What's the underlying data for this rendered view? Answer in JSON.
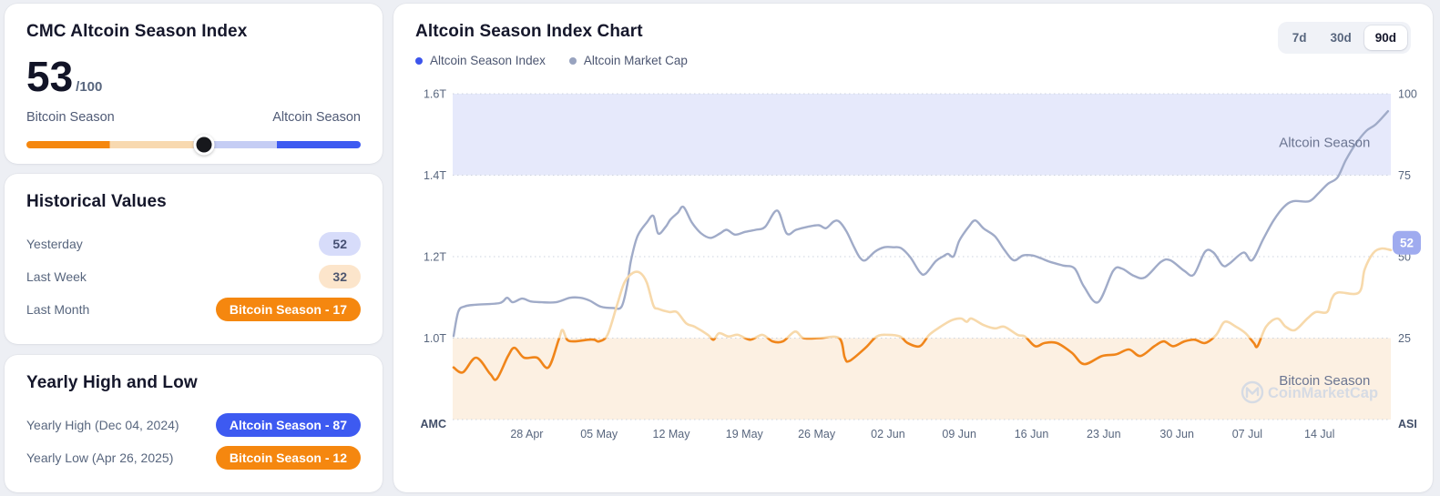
{
  "index_card": {
    "title": "CMC Altcoin Season Index",
    "value": "53",
    "max": "/100",
    "left_label": "Bitcoin Season",
    "right_label": "Altcoin Season",
    "knob_left": "53%",
    "slider_segments": [
      "#F5870F",
      "#F8D9B0",
      "#C5CDF4",
      "#3D5AF1"
    ]
  },
  "historical_card": {
    "title": "Historical Values",
    "rows": [
      {
        "label": "Yesterday",
        "value": "52",
        "pill_class": "pill-indigo"
      },
      {
        "label": "Last Week",
        "value": "32",
        "pill_class": "pill-peach"
      },
      {
        "label": "Last Month",
        "value": "Bitcoin Season - 17",
        "pill_class": "pill-orange"
      }
    ]
  },
  "yearly_card": {
    "title": "Yearly High and Low",
    "rows": [
      {
        "label": "Yearly High (Dec 04, 2024)",
        "value": "Altcoin Season - 87",
        "pill_class": "pill-blue"
      },
      {
        "label": "Yearly Low (Apr 26, 2025)",
        "value": "Bitcoin Season - 12",
        "pill_class": "pill-orange"
      }
    ]
  },
  "chart_card": {
    "title": "Altcoin Season Index Chart",
    "legend": [
      {
        "label": "Altcoin Season Index",
        "color": "#3c55ec"
      },
      {
        "label": "Altcoin Market Cap",
        "color": "#98a3bf"
      }
    ],
    "ranges": [
      {
        "label": "7d",
        "selected_class": ""
      },
      {
        "label": "30d",
        "selected_class": ""
      },
      {
        "label": "90d",
        "selected_class": "active"
      }
    ]
  },
  "chart_data": {
    "type": "line",
    "title": "Altcoin Season Index Chart",
    "left_axis": {
      "label": "AMC",
      "ticks": [
        {
          "label": "1.6T",
          "t": 1.6
        },
        {
          "label": "1.4T",
          "t": 1.4
        },
        {
          "label": "1.2T",
          "t": 1.2
        },
        {
          "label": "1.0T",
          "t": 1.0
        }
      ],
      "range_trillions": [
        0.8,
        1.6
      ]
    },
    "right_axis": {
      "label": "ASI",
      "ticks": [
        {
          "label": "100",
          "v": 100
        },
        {
          "label": "75",
          "v": 75
        },
        {
          "label": "50",
          "v": 50
        },
        {
          "label": "25",
          "v": 25
        }
      ],
      "range": [
        0,
        100
      ]
    },
    "x_ticks": [
      {
        "label": "28 Apr",
        "f": 0.079
      },
      {
        "label": "05 May",
        "f": 0.156
      },
      {
        "label": "12 May",
        "f": 0.233
      },
      {
        "label": "19 May",
        "f": 0.311
      },
      {
        "label": "26 May",
        "f": 0.388
      },
      {
        "label": "02 Jun",
        "f": 0.464
      },
      {
        "label": "09 Jun",
        "f": 0.54
      },
      {
        "label": "16 Jun",
        "f": 0.617
      },
      {
        "label": "23 Jun",
        "f": 0.694
      },
      {
        "label": "30 Jun",
        "f": 0.772
      },
      {
        "label": "07 Jul",
        "f": 0.847
      },
      {
        "label": "14 Jul",
        "f": 0.924
      }
    ],
    "zones": [
      {
        "name": "altcoin-season-zone",
        "label": "Altcoin Season",
        "from": 75,
        "to": 100,
        "color": "#e6e9fb",
        "label_v": 85
      },
      {
        "name": "bitcoin-season-zone",
        "label": "Bitcoin Season",
        "from": 0,
        "to": 25,
        "color": "#fcf0e2",
        "label_v": 12
      }
    ],
    "gridline_values": [
      100,
      75,
      50,
      25,
      0
    ],
    "current_value": "52",
    "badge_color": "#9fabef",
    "watermark": "CoinMarketCap",
    "series": [
      {
        "name": "Altcoin Season Index",
        "axis": "right",
        "color_below_threshold": "#f0851a",
        "color_above_threshold": "#f7d9ab",
        "threshold": 25,
        "points": [
          [
            0.001,
            16
          ],
          [
            0.011,
            14.5
          ],
          [
            0.025,
            19
          ],
          [
            0.04,
            14
          ],
          [
            0.047,
            12.5
          ],
          [
            0.059,
            19.5
          ],
          [
            0.066,
            22
          ],
          [
            0.076,
            19
          ],
          [
            0.09,
            19
          ],
          [
            0.102,
            16
          ],
          [
            0.113,
            24.5
          ],
          [
            0.117,
            27.5
          ],
          [
            0.122,
            24.5
          ],
          [
            0.13,
            24
          ],
          [
            0.144,
            24.5
          ],
          [
            0.151,
            24.5
          ],
          [
            0.156,
            24
          ],
          [
            0.165,
            26
          ],
          [
            0.175,
            35
          ],
          [
            0.183,
            42
          ],
          [
            0.192,
            45
          ],
          [
            0.2,
            45
          ],
          [
            0.207,
            42
          ],
          [
            0.214,
            35
          ],
          [
            0.219,
            34
          ],
          [
            0.231,
            33
          ],
          [
            0.239,
            33
          ],
          [
            0.249,
            29.5
          ],
          [
            0.258,
            28.5
          ],
          [
            0.272,
            26
          ],
          [
            0.278,
            24.5
          ],
          [
            0.284,
            26.5
          ],
          [
            0.294,
            25.5
          ],
          [
            0.304,
            26
          ],
          [
            0.317,
            24.5
          ],
          [
            0.33,
            26
          ],
          [
            0.341,
            24
          ],
          [
            0.352,
            24
          ],
          [
            0.365,
            27
          ],
          [
            0.374,
            25
          ],
          [
            0.391,
            25
          ],
          [
            0.412,
            25
          ],
          [
            0.418,
            19
          ],
          [
            0.423,
            18
          ],
          [
            0.44,
            22
          ],
          [
            0.452,
            25.5
          ],
          [
            0.464,
            26
          ],
          [
            0.477,
            25.5
          ],
          [
            0.485,
            23.5
          ],
          [
            0.498,
            22.5
          ],
          [
            0.508,
            26
          ],
          [
            0.52,
            28.5
          ],
          [
            0.532,
            30.5
          ],
          [
            0.542,
            31
          ],
          [
            0.548,
            30
          ],
          [
            0.553,
            31
          ],
          [
            0.566,
            29
          ],
          [
            0.578,
            28
          ],
          [
            0.588,
            28.5
          ],
          [
            0.602,
            26
          ],
          [
            0.61,
            25.5
          ],
          [
            0.621,
            22.5
          ],
          [
            0.631,
            23.5
          ],
          [
            0.644,
            23.5
          ],
          [
            0.66,
            20.5
          ],
          [
            0.673,
            17
          ],
          [
            0.692,
            19.5
          ],
          [
            0.707,
            20
          ],
          [
            0.721,
            21.5
          ],
          [
            0.733,
            19.5
          ],
          [
            0.748,
            22.5
          ],
          [
            0.758,
            24
          ],
          [
            0.768,
            22.5
          ],
          [
            0.78,
            24
          ],
          [
            0.791,
            24.5
          ],
          [
            0.802,
            23.5
          ],
          [
            0.814,
            26
          ],
          [
            0.823,
            30
          ],
          [
            0.835,
            28.5
          ],
          [
            0.845,
            26.5
          ],
          [
            0.854,
            23.5
          ],
          [
            0.858,
            22.5
          ],
          [
            0.867,
            28.5
          ],
          [
            0.879,
            31
          ],
          [
            0.888,
            28.5
          ],
          [
            0.898,
            27.5
          ],
          [
            0.911,
            31
          ],
          [
            0.92,
            33
          ],
          [
            0.932,
            33
          ],
          [
            0.937,
            37
          ],
          [
            0.944,
            39
          ],
          [
            0.966,
            39
          ],
          [
            0.972,
            46
          ],
          [
            0.981,
            51
          ],
          [
            0.99,
            52.5
          ],
          [
            1.0,
            52
          ]
        ]
      },
      {
        "name": "Altcoin Market Cap",
        "axis": "left",
        "color": "#a0abc8",
        "points": [
          [
            0.001,
            1.005
          ],
          [
            0.006,
            1.065
          ],
          [
            0.013,
            1.078
          ],
          [
            0.025,
            1.082
          ],
          [
            0.05,
            1.086
          ],
          [
            0.058,
            1.099
          ],
          [
            0.064,
            1.088
          ],
          [
            0.074,
            1.097
          ],
          [
            0.083,
            1.09
          ],
          [
            0.095,
            1.088
          ],
          [
            0.11,
            1.088
          ],
          [
            0.125,
            1.099
          ],
          [
            0.136,
            1.099
          ],
          [
            0.146,
            1.092
          ],
          [
            0.158,
            1.077
          ],
          [
            0.171,
            1.074
          ],
          [
            0.18,
            1.077
          ],
          [
            0.186,
            1.13
          ],
          [
            0.19,
            1.19
          ],
          [
            0.197,
            1.25
          ],
          [
            0.207,
            1.284
          ],
          [
            0.214,
            1.3
          ],
          [
            0.219,
            1.257
          ],
          [
            0.227,
            1.273
          ],
          [
            0.232,
            1.291
          ],
          [
            0.24,
            1.308
          ],
          [
            0.246,
            1.322
          ],
          [
            0.255,
            1.284
          ],
          [
            0.265,
            1.257
          ],
          [
            0.275,
            1.246
          ],
          [
            0.285,
            1.257
          ],
          [
            0.292,
            1.266
          ],
          [
            0.301,
            1.254
          ],
          [
            0.312,
            1.261
          ],
          [
            0.323,
            1.266
          ],
          [
            0.333,
            1.273
          ],
          [
            0.346,
            1.313
          ],
          [
            0.356,
            1.257
          ],
          [
            0.366,
            1.266
          ],
          [
            0.378,
            1.273
          ],
          [
            0.39,
            1.277
          ],
          [
            0.398,
            1.27
          ],
          [
            0.406,
            1.286
          ],
          [
            0.412,
            1.286
          ],
          [
            0.42,
            1.261
          ],
          [
            0.428,
            1.223
          ],
          [
            0.434,
            1.198
          ],
          [
            0.44,
            1.191
          ],
          [
            0.45,
            1.212
          ],
          [
            0.46,
            1.223
          ],
          [
            0.47,
            1.223
          ],
          [
            0.478,
            1.221
          ],
          [
            0.488,
            1.198
          ],
          [
            0.498,
            1.162
          ],
          [
            0.504,
            1.158
          ],
          [
            0.515,
            1.189
          ],
          [
            0.523,
            1.201
          ],
          [
            0.528,
            1.207
          ],
          [
            0.534,
            1.201
          ],
          [
            0.54,
            1.239
          ],
          [
            0.55,
            1.273
          ],
          [
            0.557,
            1.289
          ],
          [
            0.566,
            1.269
          ],
          [
            0.578,
            1.25
          ],
          [
            0.588,
            1.217
          ],
          [
            0.598,
            1.191
          ],
          [
            0.608,
            1.203
          ],
          [
            0.618,
            1.203
          ],
          [
            0.627,
            1.196
          ],
          [
            0.637,
            1.187
          ],
          [
            0.651,
            1.178
          ],
          [
            0.663,
            1.171
          ],
          [
            0.673,
            1.126
          ],
          [
            0.688,
            1.088
          ],
          [
            0.704,
            1.165
          ],
          [
            0.713,
            1.171
          ],
          [
            0.726,
            1.153
          ],
          [
            0.738,
            1.149
          ],
          [
            0.755,
            1.187
          ],
          [
            0.765,
            1.191
          ],
          [
            0.78,
            1.165
          ],
          [
            0.79,
            1.156
          ],
          [
            0.802,
            1.212
          ],
          [
            0.811,
            1.21
          ],
          [
            0.821,
            1.178
          ],
          [
            0.828,
            1.183
          ],
          [
            0.843,
            1.21
          ],
          [
            0.852,
            1.191
          ],
          [
            0.864,
            1.243
          ],
          [
            0.875,
            1.289
          ],
          [
            0.886,
            1.322
          ],
          [
            0.896,
            1.336
          ],
          [
            0.913,
            1.336
          ],
          [
            0.923,
            1.356
          ],
          [
            0.933,
            1.379
          ],
          [
            0.943,
            1.394
          ],
          [
            0.952,
            1.437
          ],
          [
            0.962,
            1.475
          ],
          [
            0.974,
            1.509
          ],
          [
            0.984,
            1.525
          ],
          [
            0.997,
            1.557
          ]
        ]
      }
    ]
  }
}
